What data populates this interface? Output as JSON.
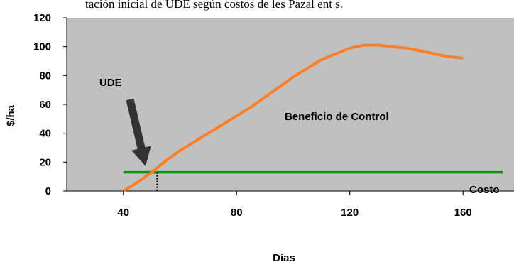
{
  "caption": "tación inicial de UDE según costos de les Pazal ent s.",
  "chart_data": {
    "type": "line",
    "xlabel": "Días",
    "ylabel": "$/ha",
    "xlim": [
      20,
      178
    ],
    "ylim": [
      0,
      120
    ],
    "x_ticks": [
      40,
      80,
      120,
      160
    ],
    "y_ticks": [
      0,
      20,
      40,
      60,
      80,
      100,
      120
    ],
    "grid": false,
    "series": [
      {
        "name": "Beneficio de Control",
        "color": "#ff7f27",
        "points": [
          [
            40,
            0
          ],
          [
            45,
            6
          ],
          [
            50,
            13
          ],
          [
            55,
            21
          ],
          [
            60,
            28
          ],
          [
            65,
            34
          ],
          [
            70,
            40
          ],
          [
            75,
            46
          ],
          [
            80,
            52
          ],
          [
            85,
            58
          ],
          [
            90,
            65
          ],
          [
            95,
            72
          ],
          [
            100,
            79
          ],
          [
            105,
            85
          ],
          [
            110,
            91
          ],
          [
            115,
            95
          ],
          [
            120,
            99
          ],
          [
            125,
            101
          ],
          [
            130,
            101
          ],
          [
            135,
            100
          ],
          [
            140,
            99
          ],
          [
            145,
            97
          ],
          [
            150,
            95
          ],
          [
            155,
            93
          ],
          [
            160,
            92
          ]
        ]
      },
      {
        "name": "Costo",
        "color": "#1a8a1a",
        "points": [
          [
            40,
            13
          ],
          [
            174,
            13
          ]
        ]
      }
    ],
    "annotations": {
      "ude_label": "UDE",
      "benefit_label": "Beneficio de Control",
      "cost_label": "Costo",
      "ude_x": 52
    },
    "colors": {
      "plot_background": "#c0c0c0",
      "ude_arrow": "#333333"
    }
  }
}
